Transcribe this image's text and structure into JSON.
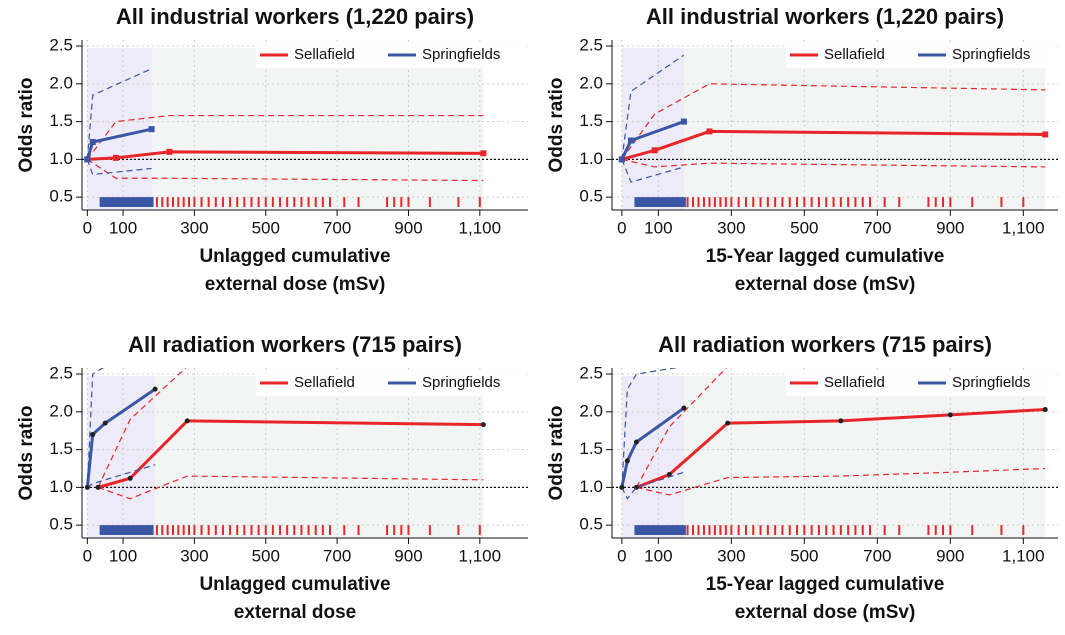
{
  "chart_data": [
    {
      "type": "line",
      "title": "All industrial workers (1,220 pairs)",
      "ylabel": "Odds ratio",
      "xlabel": [
        "Unlagged cumulative",
        "external dose (mSv)"
      ],
      "xlim": [
        -15,
        1235
      ],
      "xticks": [
        0,
        100,
        300,
        500,
        700,
        900,
        {
          "value": 1100,
          "label": "1,100"
        }
      ],
      "ylim": [
        0.33,
        2.58
      ],
      "yticks": [
        0.5,
        {
          "value": 1.0,
          "label": "1.0"
        },
        1.5,
        {
          "value": 2.0,
          "label": "2.0"
        },
        2.5
      ],
      "grid": true,
      "reference": 1,
      "legend": "upper right",
      "marker": "square",
      "series": [
        {
          "name": "Sellafield",
          "color": "#e8262a",
          "x": [
            0,
            80,
            230,
            1110
          ],
          "values": [
            1.0,
            1.02,
            1.1,
            1.08
          ],
          "upper": [
            1.0,
            1.5,
            1.58,
            1.58
          ],
          "lower": [
            1.0,
            0.75,
            0.75,
            0.72
          ],
          "rug": [
            150,
            165,
            180,
            195,
            210,
            225,
            240,
            255,
            270,
            285,
            300,
            320,
            340,
            360,
            380,
            400,
            420,
            440,
            460,
            480,
            500,
            520,
            540,
            560,
            580,
            600,
            620,
            640,
            660,
            680,
            720,
            760,
            840,
            860,
            880,
            900,
            960,
            1040,
            1100
          ]
        },
        {
          "name": "Springfields",
          "color": "#3a56a5",
          "x": [
            0,
            15,
            180
          ],
          "values": [
            1.0,
            1.23,
            1.4
          ],
          "upper": [
            1.0,
            1.85,
            2.2
          ],
          "lower": [
            1.0,
            0.8,
            0.88
          ],
          "rug": [
            40,
            50,
            60,
            70,
            80,
            90,
            100,
            110,
            120,
            130,
            140,
            150,
            160,
            170,
            180
          ]
        }
      ]
    },
    {
      "type": "line",
      "title": "All industrial workers (1,220 pairs)",
      "ylabel": "Odds ratio",
      "xlabel": [
        "15-Year lagged cumulative",
        "external dose (mSv)"
      ],
      "xlim": [
        -27,
        1195
      ],
      "xticks": [
        0,
        100,
        300,
        500,
        700,
        900,
        {
          "value": 1100,
          "label": "1,100"
        }
      ],
      "ylim": [
        0.33,
        2.58
      ],
      "yticks": [
        0.5,
        {
          "value": 1.0,
          "label": "1.0"
        },
        1.5,
        {
          "value": 2.0,
          "label": "2.0"
        },
        2.5
      ],
      "grid": true,
      "reference": 1,
      "legend": "upper right",
      "marker": "square",
      "series": [
        {
          "name": "Sellafield",
          "color": "#e8262a",
          "x": [
            0,
            90,
            240,
            1160
          ],
          "values": [
            1.0,
            1.12,
            1.37,
            1.33
          ],
          "upper": [
            1.0,
            1.6,
            2.0,
            1.92
          ],
          "lower": [
            1.0,
            0.9,
            0.95,
            0.9
          ],
          "rug": [
            150,
            165,
            180,
            195,
            210,
            225,
            240,
            255,
            270,
            285,
            300,
            320,
            340,
            360,
            380,
            400,
            420,
            440,
            460,
            480,
            500,
            520,
            540,
            560,
            580,
            600,
            620,
            640,
            660,
            680,
            720,
            760,
            840,
            860,
            880,
            900,
            960,
            1040,
            1100
          ]
        },
        {
          "name": "Springfields",
          "color": "#3a56a5",
          "x": [
            0,
            25,
            170
          ],
          "values": [
            1.0,
            1.25,
            1.5
          ],
          "upper": [
            1.0,
            1.9,
            2.38
          ],
          "lower": [
            1.0,
            0.7,
            0.9
          ],
          "rug": [
            40,
            50,
            60,
            70,
            80,
            90,
            100,
            110,
            120,
            130,
            140,
            150,
            160,
            170
          ]
        }
      ]
    },
    {
      "type": "line",
      "title": "All radiation workers (715 pairs)",
      "ylabel": "Odds ratio",
      "xlabel": [
        "Unlagged cumulative",
        "external dose"
      ],
      "xlim": [
        -15,
        1235
      ],
      "xticks": [
        0,
        100,
        300,
        500,
        700,
        900,
        {
          "value": 1100,
          "label": "1,100"
        }
      ],
      "ylim": [
        0.33,
        2.58
      ],
      "yticks": [
        0.5,
        {
          "value": 1.0,
          "label": "1.0"
        },
        1.5,
        {
          "value": 2.0,
          "label": "2.0"
        },
        2.5
      ],
      "grid": true,
      "reference": 1,
      "legend": "upper right",
      "marker": "circle",
      "series": [
        {
          "name": "Sellafield",
          "color": "#e8262a",
          "x": [
            30,
            120,
            280,
            1110
          ],
          "values": [
            1.0,
            1.12,
            1.88,
            1.83
          ],
          "upper": [
            1.0,
            1.9,
            2.6,
            2.6
          ],
          "lower": [
            1.0,
            0.85,
            1.15,
            1.1
          ],
          "rug": [
            150,
            165,
            180,
            195,
            210,
            225,
            240,
            255,
            270,
            285,
            300,
            320,
            340,
            360,
            380,
            400,
            420,
            440,
            460,
            480,
            500,
            520,
            540,
            560,
            580,
            600,
            620,
            640,
            660,
            680,
            720,
            760,
            840,
            860,
            880,
            900,
            960,
            1040,
            1100
          ]
        },
        {
          "name": "Springfields",
          "color": "#3a56a5",
          "x": [
            0,
            15,
            50,
            190
          ],
          "values": [
            1.0,
            1.7,
            1.85,
            2.3
          ],
          "upper": [
            1.0,
            2.5,
            2.6,
            2.6
          ],
          "lower": [
            1.0,
            1.05,
            1.1,
            1.3
          ],
          "rug": [
            40,
            50,
            60,
            70,
            80,
            90,
            100,
            110,
            120,
            130,
            140,
            150,
            160,
            170,
            180
          ]
        }
      ]
    },
    {
      "type": "line",
      "title": "All radiation workers (715 pairs)",
      "ylabel": "Odds ratio",
      "xlabel": [
        "15-Year lagged cumulative",
        "external dose (mSv)"
      ],
      "xlim": [
        -27,
        1195
      ],
      "xticks": [
        0,
        100,
        300,
        500,
        700,
        900,
        {
          "value": 1100,
          "label": "1,100"
        }
      ],
      "ylim": [
        0.33,
        2.58
      ],
      "yticks": [
        0.5,
        {
          "value": 1.0,
          "label": "1.0"
        },
        1.5,
        {
          "value": 2.0,
          "label": "2.0"
        },
        2.5
      ],
      "grid": true,
      "reference": 1,
      "legend": "upper right",
      "marker": "circle",
      "series": [
        {
          "name": "Sellafield",
          "color": "#e8262a",
          "x": [
            40,
            130,
            290,
            600,
            900,
            1160
          ],
          "values": [
            1.0,
            1.17,
            1.85,
            1.88,
            1.96,
            2.03
          ],
          "upper": [
            1.0,
            1.8,
            2.6,
            2.6,
            2.6,
            2.6
          ],
          "lower": [
            1.0,
            0.9,
            1.13,
            1.15,
            1.2,
            1.25
          ],
          "rug": [
            150,
            165,
            180,
            195,
            210,
            225,
            240,
            255,
            270,
            285,
            300,
            320,
            340,
            360,
            380,
            400,
            420,
            440,
            460,
            480,
            500,
            520,
            540,
            560,
            580,
            600,
            620,
            640,
            660,
            680,
            720,
            760,
            840,
            860,
            880,
            900,
            960,
            1040,
            1100
          ]
        },
        {
          "name": "Springfields",
          "color": "#3a56a5",
          "x": [
            0,
            15,
            40,
            170
          ],
          "values": [
            1.0,
            1.35,
            1.6,
            2.05
          ],
          "upper": [
            1.0,
            2.3,
            2.5,
            2.6
          ],
          "lower": [
            1.0,
            0.85,
            1.0,
            1.2
          ],
          "rug": [
            40,
            50,
            60,
            70,
            80,
            90,
            100,
            110,
            120,
            130,
            140,
            150,
            160,
            170
          ]
        }
      ]
    }
  ]
}
